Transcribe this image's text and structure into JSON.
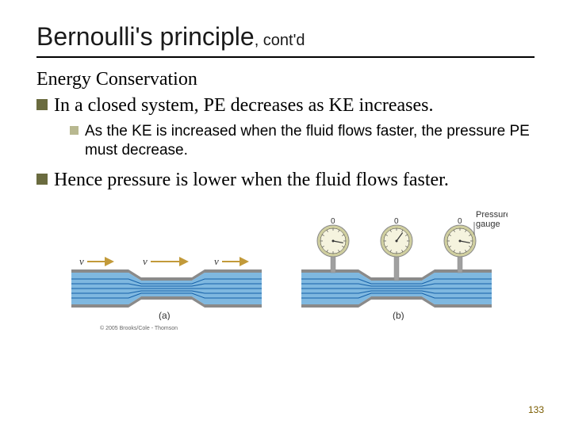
{
  "title": {
    "main": "Bernoulli's principle",
    "suffix": ", cont'd"
  },
  "section_heading": "Energy Conservation",
  "bullets": {
    "l1a": "In a closed system, PE decreases as KE increases.",
    "l2a": "As the KE is increased when the fluid flows faster, the pressure PE must decrease.",
    "l1b": "Hence pressure is lower when the fluid flows faster."
  },
  "figure": {
    "copyright": "© 2005 Brooks/Cole - Thomson",
    "panel_a_label": "(a)",
    "panel_b_label": "(b)",
    "velocity_label": "v",
    "gauge_label": "Pressure gauge",
    "gauge_zero": "0",
    "colors": {
      "pipe_outer": "#8a8a8a",
      "pipe_inner": "#a0a0a0",
      "fluid": "#7fb8e0",
      "streamline": "#1560a8",
      "arrow": "#c29a3a",
      "gauge_body": "#d0cfa0",
      "gauge_face": "#f5f3de",
      "gauge_tick": "#333333",
      "label_text": "#333333"
    }
  },
  "page_number": "133"
}
